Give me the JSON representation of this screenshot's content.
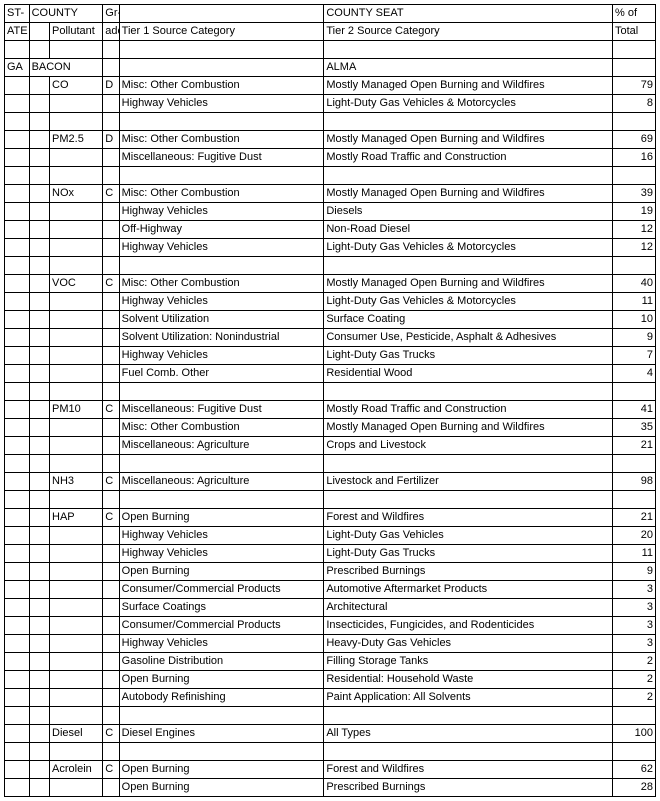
{
  "headers": {
    "state_top": "ST-",
    "state_bot": "ATE",
    "county": "COUNTY",
    "pollutant": "Pollutant",
    "grade_top": "Gr-",
    "grade_bot": "ade",
    "tier1": "Tier 1 Source Category",
    "county_seat": "COUNTY SEAT",
    "tier2": "Tier 2 Source Category",
    "pct_top": "% of",
    "pct_bot": "Total"
  },
  "state": "GA",
  "county": "BACON",
  "county_seat": "ALMA",
  "groups": [
    {
      "pollutant": "CO",
      "grade": "D",
      "rows": [
        {
          "t1": "Misc: Other Combustion",
          "t2": "Mostly Managed Open Burning and Wildfires",
          "pct": 79
        },
        {
          "t1": "Highway Vehicles",
          "t2": "Light-Duty Gas Vehicles & Motorcycles",
          "pct": 8
        }
      ]
    },
    {
      "pollutant": "PM2.5",
      "grade": "D",
      "rows": [
        {
          "t1": "Misc: Other Combustion",
          "t2": "Mostly Managed Open Burning and Wildfires",
          "pct": 69
        },
        {
          "t1": "Miscellaneous: Fugitive Dust",
          "t2": "Mostly Road Traffic and Construction",
          "pct": 16
        }
      ]
    },
    {
      "pollutant": "NOx",
      "grade": "C",
      "rows": [
        {
          "t1": "Misc: Other Combustion",
          "t2": "Mostly Managed Open Burning and Wildfires",
          "pct": 39
        },
        {
          "t1": "Highway Vehicles",
          "t2": "Diesels",
          "pct": 19
        },
        {
          "t1": "Off-Highway",
          "t2": "Non-Road Diesel",
          "pct": 12
        },
        {
          "t1": "Highway Vehicles",
          "t2": "Light-Duty Gas Vehicles & Motorcycles",
          "pct": 12
        }
      ]
    },
    {
      "pollutant": "VOC",
      "grade": "C",
      "rows": [
        {
          "t1": "Misc: Other Combustion",
          "t2": "Mostly Managed Open Burning and Wildfires",
          "pct": 40
        },
        {
          "t1": "Highway Vehicles",
          "t2": "Light-Duty Gas Vehicles & Motorcycles",
          "pct": 11
        },
        {
          "t1": "Solvent Utilization",
          "t2": "Surface Coating",
          "pct": 10
        },
        {
          "t1": "Solvent Utilization: Nonindustrial",
          "t2": "Consumer Use, Pesticide, Asphalt & Adhesives",
          "pct": 9
        },
        {
          "t1": "Highway Vehicles",
          "t2": "Light-Duty Gas Trucks",
          "pct": 7
        },
        {
          "t1": "Fuel Comb. Other",
          "t2": "Residential Wood",
          "pct": 4
        }
      ]
    },
    {
      "pollutant": "PM10",
      "grade": "C",
      "rows": [
        {
          "t1": "Miscellaneous: Fugitive Dust",
          "t2": "Mostly Road Traffic and Construction",
          "pct": 41
        },
        {
          "t1": "Misc: Other Combustion",
          "t2": "Mostly Managed Open Burning and Wildfires",
          "pct": 35
        },
        {
          "t1": "Miscellaneous: Agriculture",
          "t2": "Crops and Livestock",
          "pct": 21
        }
      ]
    },
    {
      "pollutant": "NH3",
      "grade": "C",
      "rows": [
        {
          "t1": "Miscellaneous: Agriculture",
          "t2": "Livestock and Fertilizer",
          "pct": 98
        }
      ]
    },
    {
      "pollutant": "HAP",
      "grade": "C",
      "rows": [
        {
          "t1": "Open Burning",
          "t2": "Forest and Wildfires",
          "pct": 21
        },
        {
          "t1": "Highway Vehicles",
          "t2": "Light-Duty Gas Vehicles",
          "pct": 20
        },
        {
          "t1": "Highway Vehicles",
          "t2": "Light-Duty Gas Trucks",
          "pct": 11
        },
        {
          "t1": "Open Burning",
          "t2": "Prescribed Burnings",
          "pct": 9
        },
        {
          "t1": "Consumer/Commercial Products",
          "t2": "Automotive Aftermarket Products",
          "pct": 3
        },
        {
          "t1": "Surface Coatings",
          "t2": "Architectural",
          "pct": 3
        },
        {
          "t1": "Consumer/Commercial Products",
          "t2": "Insecticides, Fungicides, and Rodenticides",
          "pct": 3
        },
        {
          "t1": "Highway Vehicles",
          "t2": "Heavy-Duty Gas Vehicles",
          "pct": 3
        },
        {
          "t1": "Gasoline Distribution",
          "t2": "Filling Storage Tanks",
          "pct": 2
        },
        {
          "t1": "Open Burning",
          "t2": "Residential: Household Waste",
          "pct": 2
        },
        {
          "t1": "Autobody Refinishing",
          "t2": "Paint Application: All Solvents",
          "pct": 2
        }
      ]
    },
    {
      "pollutant": "Diesel",
      "grade": "C",
      "rows": [
        {
          "t1": "Diesel Engines",
          "t2": "All Types",
          "pct": 100
        }
      ]
    },
    {
      "pollutant": "Acrolein",
      "grade": "C",
      "rows": [
        {
          "t1": "Open Burning",
          "t2": "Forest and Wildfires",
          "pct": 62
        },
        {
          "t1": "Open Burning",
          "t2": "Prescribed Burnings",
          "pct": 28
        }
      ]
    }
  ]
}
